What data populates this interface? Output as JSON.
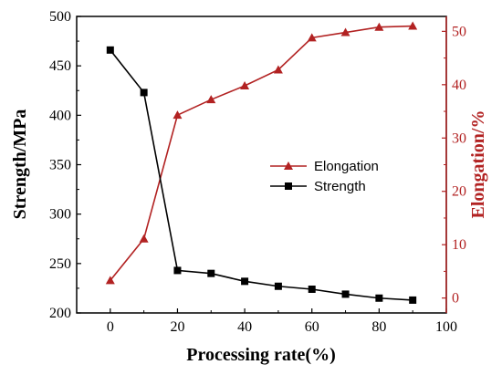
{
  "chart_data": {
    "type": "line",
    "xlabel": "Processing rate(%)",
    "ylabel_left": "Strength/MPa",
    "ylabel_right": "Elongation/%",
    "xlim": [
      -10,
      100
    ],
    "ylim_left": [
      200,
      500
    ],
    "ylim_right": [
      -2.8,
      52.8
    ],
    "x_ticks": [
      0,
      20,
      40,
      60,
      80,
      100
    ],
    "y_left_ticks": [
      200,
      250,
      300,
      350,
      400,
      450,
      500
    ],
    "y_right_ticks": [
      0,
      10,
      20,
      30,
      40,
      50
    ],
    "grid": false,
    "legend_position": "center-right",
    "series": [
      {
        "name": "Elongation",
        "axis": "right",
        "marker": "triangle",
        "color": "#b22222",
        "x": [
          0,
          10,
          20,
          30,
          40,
          50,
          60,
          70,
          80,
          90
        ],
        "values": [
          3.3,
          11.1,
          34.3,
          37.2,
          39.8,
          42.8,
          48.8,
          49.8,
          50.8,
          51.0
        ]
      },
      {
        "name": "Strength",
        "axis": "left",
        "marker": "square",
        "color": "#000000",
        "x": [
          0,
          10,
          20,
          30,
          40,
          50,
          60,
          70,
          80,
          90
        ],
        "values": [
          466,
          423,
          243,
          240,
          232,
          227,
          224,
          219,
          215,
          213
        ]
      }
    ]
  }
}
